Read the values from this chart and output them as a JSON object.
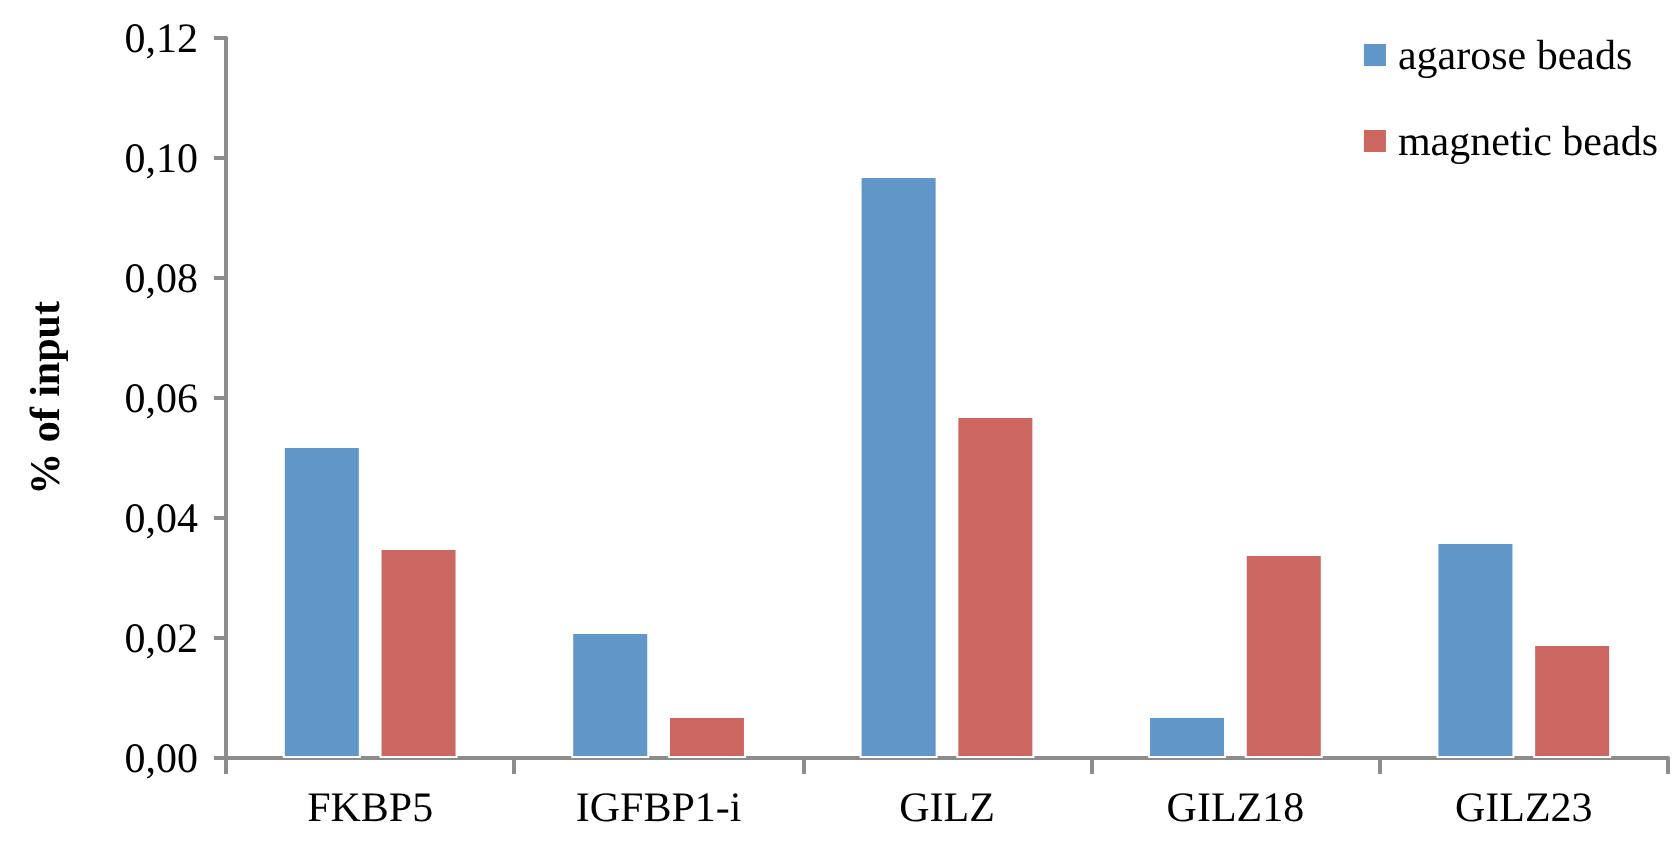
{
  "chart_data": {
    "type": "bar",
    "ylabel": "% of input",
    "categories": [
      "FKBP5",
      "IGFBP1-i",
      "GILZ",
      "GILZ18",
      "GILZ23"
    ],
    "series": [
      {
        "name": "agarose beads",
        "color": "#6096c8",
        "values": [
          0.052,
          0.021,
          0.097,
          0.007,
          0.036
        ]
      },
      {
        "name": "magnetic beads",
        "color": "#cc6660",
        "values": [
          0.035,
          0.007,
          0.057,
          0.034,
          0.019
        ]
      }
    ],
    "ylim": [
      0,
      0.12
    ],
    "yticks": [
      {
        "value": 0,
        "label": "0,00"
      },
      {
        "value": 0.02,
        "label": "0,02"
      },
      {
        "value": 0.04,
        "label": "0,04"
      },
      {
        "value": 0.06,
        "label": "0,06"
      },
      {
        "value": 0.08,
        "label": "0,08"
      },
      {
        "value": 0.1,
        "label": "0,10"
      },
      {
        "value": 0.12,
        "label": "0,12"
      }
    ],
    "grid": false,
    "legend": "top right"
  }
}
